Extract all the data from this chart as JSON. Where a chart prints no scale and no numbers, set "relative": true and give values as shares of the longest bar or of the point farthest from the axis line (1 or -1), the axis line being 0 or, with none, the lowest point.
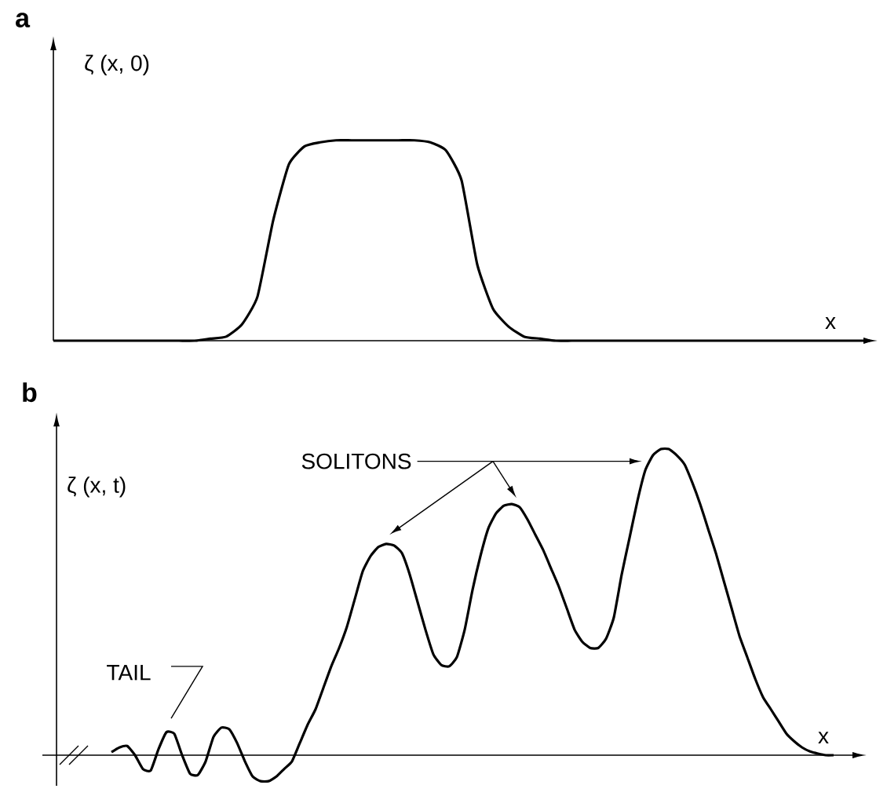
{
  "chart_data": [
    {
      "type": "line",
      "title": "a",
      "ylabel": "ζ (x, 0)",
      "xlabel": "x",
      "relative": true,
      "color": "#000000",
      "categories": [
        null,
        null,
        null,
        null,
        null,
        null,
        null,
        null,
        null,
        null,
        null,
        null,
        null,
        null,
        null,
        null,
        null,
        null,
        null,
        null,
        null,
        null,
        null,
        null,
        null,
        null,
        null,
        null,
        null,
        null,
        null,
        null,
        null,
        null,
        null,
        null,
        null,
        null,
        null,
        null,
        null,
        null,
        null,
        null,
        null,
        null,
        null,
        null,
        null,
        null,
        null,
        null,
        null
      ],
      "values": [
        0,
        0,
        0,
        0,
        0,
        0,
        0,
        0,
        0,
        0,
        0.01,
        0.02,
        0.08,
        0.22,
        0.6,
        0.88,
        0.97,
        0.99,
        1,
        1,
        1,
        1,
        1,
        1,
        0.99,
        0.95,
        0.8,
        0.38,
        0.16,
        0.07,
        0.02,
        0.01,
        0,
        0,
        0,
        0,
        0,
        0,
        0,
        0,
        0,
        0,
        0,
        0,
        0,
        0,
        0,
        0,
        0,
        0,
        0,
        0,
        0
      ]
    },
    {
      "type": "line",
      "title": "b",
      "ylabel": "ζ (x, t)",
      "xlabel": "x",
      "relative": true,
      "color": "#000000",
      "annotations": [
        "SOLITONS",
        "TAIL"
      ],
      "categories": [
        null,
        null,
        null,
        null,
        null,
        null,
        null,
        null,
        null,
        null,
        null,
        null,
        null,
        null,
        null,
        null,
        null,
        null,
        null,
        null,
        null,
        null,
        null,
        null,
        null,
        null,
        null,
        null,
        null,
        null,
        null,
        null,
        null,
        null,
        null,
        null,
        null,
        null,
        null,
        null,
        null,
        null,
        null,
        null,
        null,
        null,
        null,
        null,
        null,
        null,
        null,
        null,
        null,
        null,
        null,
        null,
        null,
        null,
        null,
        null,
        null,
        null,
        null,
        null,
        null,
        null,
        null,
        null,
        null,
        null,
        null,
        null,
        null,
        null,
        null,
        null,
        null,
        null,
        null,
        null,
        null,
        null,
        null,
        null,
        null,
        null,
        null,
        null,
        null,
        null,
        null,
        null,
        null,
        null,
        null,
        null,
        null,
        null,
        null,
        null
      ],
      "values": [
        null,
        null,
        null,
        null,
        null,
        null,
        null,
        0.01,
        0.025,
        0.03,
        0.0,
        -0.045,
        -0.05,
        0.02,
        0.075,
        0.07,
        0.0,
        -0.06,
        -0.065,
        -0.02,
        0.06,
        0.09,
        0.085,
        0.04,
        -0.02,
        -0.07,
        -0.085,
        -0.085,
        -0.07,
        -0.045,
        -0.02,
        0.04,
        0.1,
        0.15,
        0.22,
        0.29,
        0.35,
        0.42,
        0.51,
        0.6,
        0.65,
        0.68,
        0.69,
        0.685,
        0.66,
        0.59,
        0.5,
        0.41,
        0.33,
        0.295,
        0.29,
        0.32,
        0.41,
        0.54,
        0.65,
        0.74,
        0.79,
        0.815,
        0.82,
        0.81,
        0.77,
        0.72,
        0.67,
        0.61,
        0.55,
        0.48,
        0.41,
        0.37,
        0.35,
        0.35,
        0.38,
        0.45,
        0.59,
        0.71,
        0.83,
        0.93,
        0.98,
        1.0,
        1.0,
        0.98,
        0.95,
        0.89,
        0.82,
        0.74,
        0.66,
        0.57,
        0.48,
        0.39,
        0.32,
        0.25,
        0.19,
        0.15,
        0.11,
        0.07,
        0.045,
        0.025,
        0.012,
        0.005,
        0.0,
        0.0
      ]
    }
  ]
}
